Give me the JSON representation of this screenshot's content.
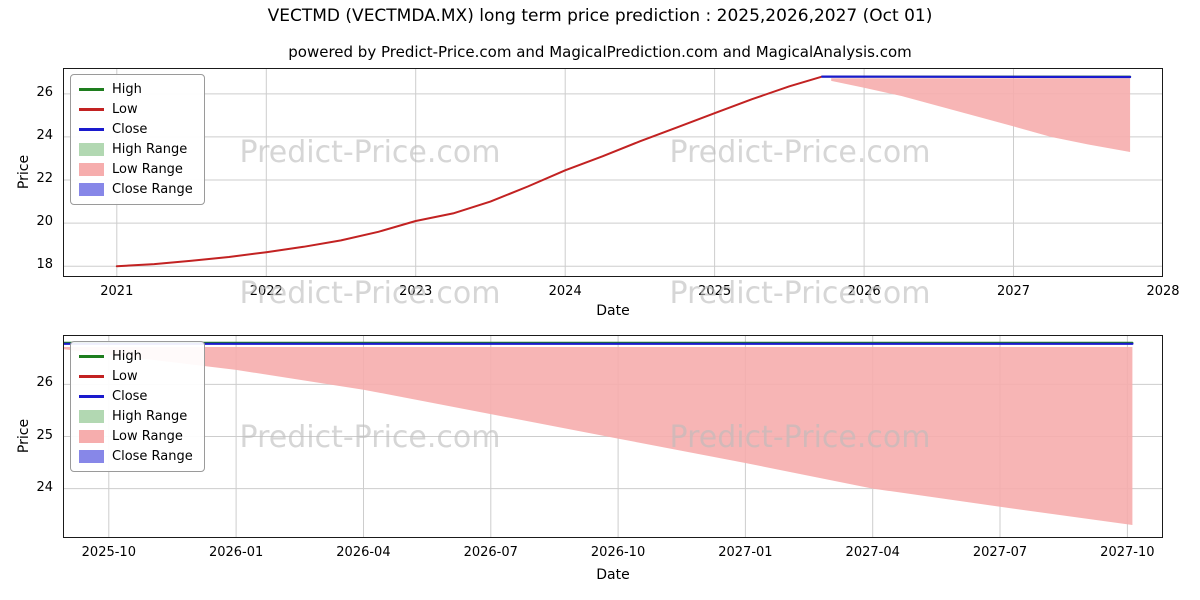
{
  "title": "VECTMD (VECTMDA.MX) long term price prediction : 2025,2026,2027 (Oct 01)",
  "subtitle": "powered by Predict-Price.com and MagicalPrediction.com and MagicalAnalysis.com",
  "watermark": "Predict-Price.com",
  "colors": {
    "high": "#1e7d1e",
    "low": "#c22222",
    "close": "#1a1acd",
    "high_range": "#b2d8b2",
    "low_range": "#f6adad",
    "close_range": "#8787e8",
    "grid": "#cdcdcd",
    "border": "#1a1a1a",
    "watermark": "#bdbdbd"
  },
  "chart_data": [
    {
      "type": "line",
      "title": "powered by Predict-Price.com and MagicalPrediction.com and MagicalAnalysis.com",
      "xlabel": "Date",
      "ylabel": "Price",
      "xlim": [
        2020.64,
        2028.0
      ],
      "ylim": [
        17.5,
        27.2
      ],
      "grid": true,
      "legend_position": "upper-left",
      "xticks": [
        2021,
        2022,
        2023,
        2024,
        2025,
        2026,
        2027,
        2028
      ],
      "xtick_labels": [
        "2021",
        "2022",
        "2023",
        "2024",
        "2025",
        "2026",
        "2027",
        "2028"
      ],
      "yticks": [
        18,
        20,
        22,
        24,
        26
      ],
      "ytick_labels": [
        "18",
        "20",
        "22",
        "24",
        "26"
      ],
      "legend": [
        {
          "label": "High",
          "kind": "line",
          "color": "#1e7d1e"
        },
        {
          "label": "Low",
          "kind": "line",
          "color": "#c22222"
        },
        {
          "label": "Close",
          "kind": "line",
          "color": "#1a1acd"
        },
        {
          "label": "High Range",
          "kind": "patch",
          "color": "#b2d8b2"
        },
        {
          "label": "Low Range",
          "kind": "patch",
          "color": "#f6adad"
        },
        {
          "label": "Close Range",
          "kind": "patch",
          "color": "#8787e8"
        }
      ],
      "areas": [
        {
          "name": "Low Range",
          "color": "#f6adad",
          "opacity": 0.9,
          "x": [
            2025.78,
            2026.0,
            2026.25,
            2026.5,
            2026.75,
            2027.0,
            2027.25,
            2027.5,
            2027.78
          ],
          "y_upper": [
            26.72,
            26.72,
            26.72,
            26.72,
            26.72,
            26.72,
            26.72,
            26.72,
            26.72
          ],
          "y_lower": [
            26.6,
            26.28,
            25.9,
            25.43,
            24.96,
            24.49,
            24.0,
            23.65,
            23.3
          ]
        }
      ],
      "series": [
        {
          "name": "High",
          "color": "#1e7d1e",
          "width": 2,
          "x": [
            2025.72,
            2027.78
          ],
          "y": [
            26.8,
            26.8
          ]
        },
        {
          "name": "Low",
          "color": "#c22222",
          "width": 2,
          "x": [
            2021.0,
            2021.25,
            2021.5,
            2021.75,
            2022.0,
            2022.25,
            2022.5,
            2022.75,
            2023.0,
            2023.25,
            2023.5,
            2023.75,
            2024.0,
            2024.25,
            2024.5,
            2024.75,
            2025.0,
            2025.25,
            2025.5,
            2025.72
          ],
          "y": [
            18.0,
            18.1,
            18.25,
            18.43,
            18.65,
            18.9,
            19.2,
            19.6,
            20.1,
            20.45,
            21.0,
            21.7,
            22.45,
            23.1,
            23.8,
            24.45,
            25.1,
            25.75,
            26.35,
            26.8
          ]
        },
        {
          "name": "Close",
          "color": "#1a1acd",
          "width": 2.2,
          "x": [
            2025.72,
            2027.78
          ],
          "y": [
            26.8,
            26.78
          ]
        }
      ]
    },
    {
      "type": "line",
      "xlabel": "Date",
      "ylabel": "Price",
      "xlim": [
        2025.66,
        2027.82
      ],
      "ylim": [
        23.05,
        26.95
      ],
      "grid": true,
      "legend_position": "upper-left",
      "xticks": [
        2025.75,
        2026.0,
        2026.25,
        2026.5,
        2026.75,
        2027.0,
        2027.25,
        2027.5,
        2027.75
      ],
      "xtick_labels": [
        "2025-10",
        "2026-01",
        "2026-04",
        "2026-07",
        "2026-10",
        "2027-01",
        "2027-04",
        "2027-07",
        "2027-10"
      ],
      "yticks": [
        24,
        25,
        26
      ],
      "ytick_labels": [
        "24",
        "25",
        "26"
      ],
      "legend": [
        {
          "label": "High",
          "kind": "line",
          "color": "#1e7d1e"
        },
        {
          "label": "Low",
          "kind": "line",
          "color": "#c22222"
        },
        {
          "label": "Close",
          "kind": "line",
          "color": "#1a1acd"
        },
        {
          "label": "High Range",
          "kind": "patch",
          "color": "#b2d8b2"
        },
        {
          "label": "Low Range",
          "kind": "patch",
          "color": "#f6adad"
        },
        {
          "label": "Close Range",
          "kind": "patch",
          "color": "#8787e8"
        }
      ],
      "areas": [
        {
          "name": "Low Range",
          "color": "#f6adad",
          "opacity": 0.9,
          "x": [
            2025.66,
            2026.0,
            2026.25,
            2026.5,
            2026.75,
            2027.0,
            2027.25,
            2027.5,
            2027.76
          ],
          "y_upper": [
            26.72,
            26.72,
            26.72,
            26.72,
            26.72,
            26.72,
            26.72,
            26.72,
            26.72
          ],
          "y_lower": [
            26.68,
            26.28,
            25.9,
            25.43,
            24.96,
            24.49,
            24.0,
            23.65,
            23.3
          ]
        }
      ],
      "series": [
        {
          "name": "High",
          "color": "#1e7d1e",
          "width": 2,
          "x": [
            2025.66,
            2027.76
          ],
          "y": [
            26.8,
            26.8
          ]
        },
        {
          "name": "Close",
          "color": "#1a1acd",
          "width": 2.2,
          "x": [
            2025.66,
            2027.76
          ],
          "y": [
            26.78,
            26.78
          ]
        }
      ]
    }
  ]
}
